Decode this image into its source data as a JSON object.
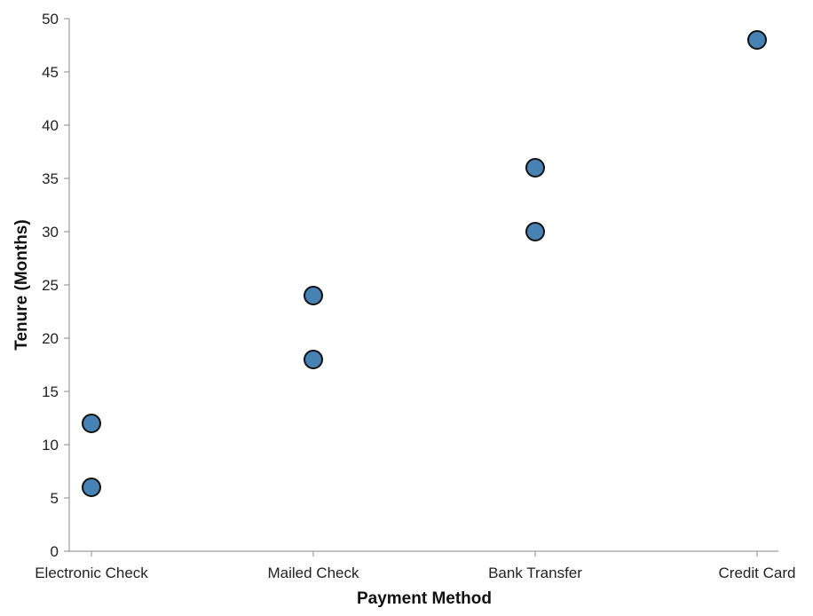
{
  "chart_data": {
    "type": "scatter",
    "title": "",
    "xlabel": "Payment Method",
    "ylabel": "Tenure (Months)",
    "categories": [
      "Electronic Check",
      "Mailed Check",
      "Bank Transfer",
      "Credit Card"
    ],
    "ylim": [
      0,
      50
    ],
    "yticks": [
      0,
      5,
      10,
      15,
      20,
      25,
      30,
      35,
      40,
      45,
      50
    ],
    "points": [
      {
        "x": "Electronic Check",
        "y": 6
      },
      {
        "x": "Electronic Check",
        "y": 12
      },
      {
        "x": "Mailed Check",
        "y": 18
      },
      {
        "x": "Mailed Check",
        "y": 24
      },
      {
        "x": "Bank Transfer",
        "y": 30
      },
      {
        "x": "Bank Transfer",
        "y": 36
      },
      {
        "x": "Credit Card",
        "y": 48
      }
    ],
    "grid": false,
    "legend": "none",
    "colors": {
      "point_fill": "#4682b4",
      "point_stroke": "#111111",
      "axis": "#8a8a8a",
      "text": "#222222"
    }
  }
}
